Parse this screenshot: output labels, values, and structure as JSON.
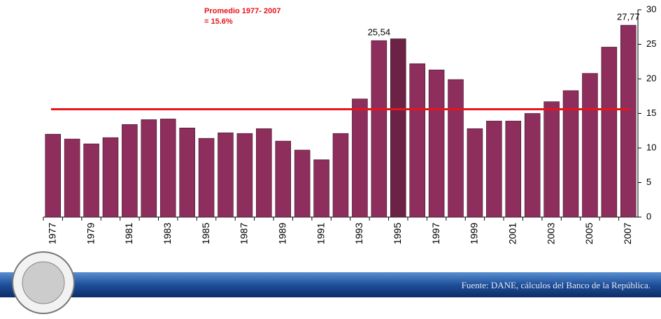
{
  "chart_data": {
    "type": "bar",
    "annotation": [
      "Promedio 1977- 2007",
      "= 15.6%"
    ],
    "source": "Fuente: DANE, cálculos del Banco de la República.",
    "categories": [
      "1977",
      null,
      "1979",
      null,
      "1981",
      null,
      "1983",
      null,
      "1985",
      null,
      "1987",
      null,
      "1989",
      null,
      "1991",
      null,
      "1993",
      null,
      "1995",
      null,
      "1997",
      null,
      "1999",
      null,
      "2001",
      null,
      "2003",
      null,
      "2005",
      null,
      "2007"
    ],
    "values": [
      12.0,
      11.3,
      10.6,
      11.5,
      13.4,
      14.1,
      14.2,
      12.9,
      11.4,
      12.2,
      12.1,
      12.8,
      11.0,
      9.7,
      8.3,
      12.1,
      17.1,
      25.54,
      25.8,
      22.2,
      21.3,
      19.9,
      12.8,
      13.9,
      13.9,
      15.0,
      16.7,
      18.3,
      20.8,
      24.6,
      27.77
    ],
    "value_labels": [
      null,
      null,
      null,
      null,
      null,
      null,
      null,
      null,
      null,
      null,
      null,
      null,
      null,
      null,
      null,
      null,
      null,
      "25,54",
      null,
      null,
      null,
      null,
      null,
      null,
      null,
      null,
      null,
      null,
      null,
      null,
      "27,77"
    ],
    "color": "#8e2e5c",
    "highlight_color": "#6b2245",
    "highlight_index": 18,
    "average": 15.6,
    "average_color": "#e8141b",
    "ylim": [
      0,
      30
    ],
    "yticks": [
      0,
      5,
      10,
      15,
      20,
      25,
      30
    ]
  }
}
